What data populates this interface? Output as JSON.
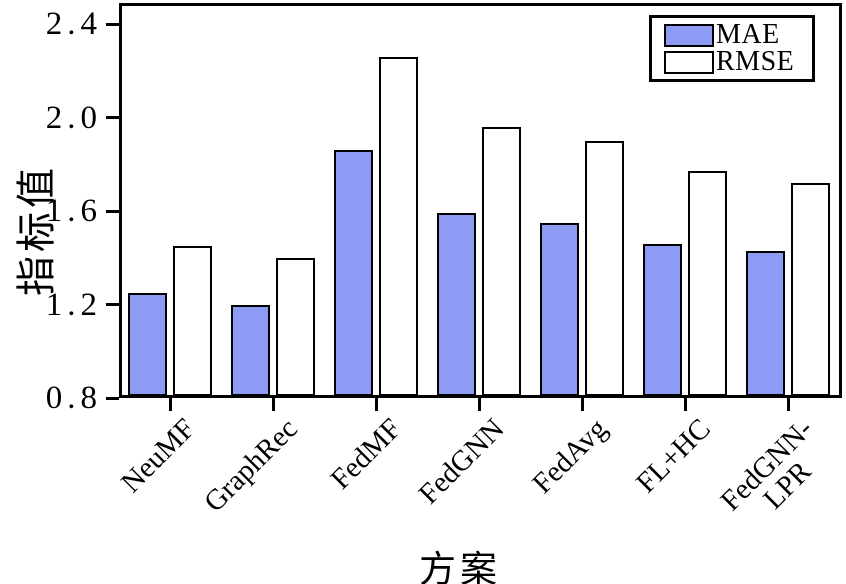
{
  "chart_data": {
    "type": "bar",
    "title": "",
    "xlabel": "方案",
    "ylabel": "指标值",
    "categories": [
      "NeuMF",
      "GraphRec",
      "FedMF",
      "FedGNN",
      "FedAvg",
      "FL+HC",
      "FedGNN-\nLPR"
    ],
    "series": [
      {
        "name": "MAE",
        "fill": "#8e9bf5",
        "values": [
          1.25,
          1.2,
          1.86,
          1.59,
          1.55,
          1.46,
          1.43
        ]
      },
      {
        "name": "RMSE",
        "fill": "#ffffff",
        "values": [
          1.45,
          1.4,
          2.26,
          1.96,
          1.9,
          1.77,
          1.72
        ]
      }
    ],
    "ylim": [
      0.8,
      2.4
    ],
    "ytick_labels": [
      "0.8",
      "1.2",
      "1.6",
      "2.0",
      "2.4"
    ],
    "ytick_values": [
      0.8,
      1.2,
      1.6,
      2.0,
      2.4
    ],
    "grid": false,
    "legend_position": "top-right",
    "bar_border_color": "#000000",
    "axis_color": "#000000"
  }
}
